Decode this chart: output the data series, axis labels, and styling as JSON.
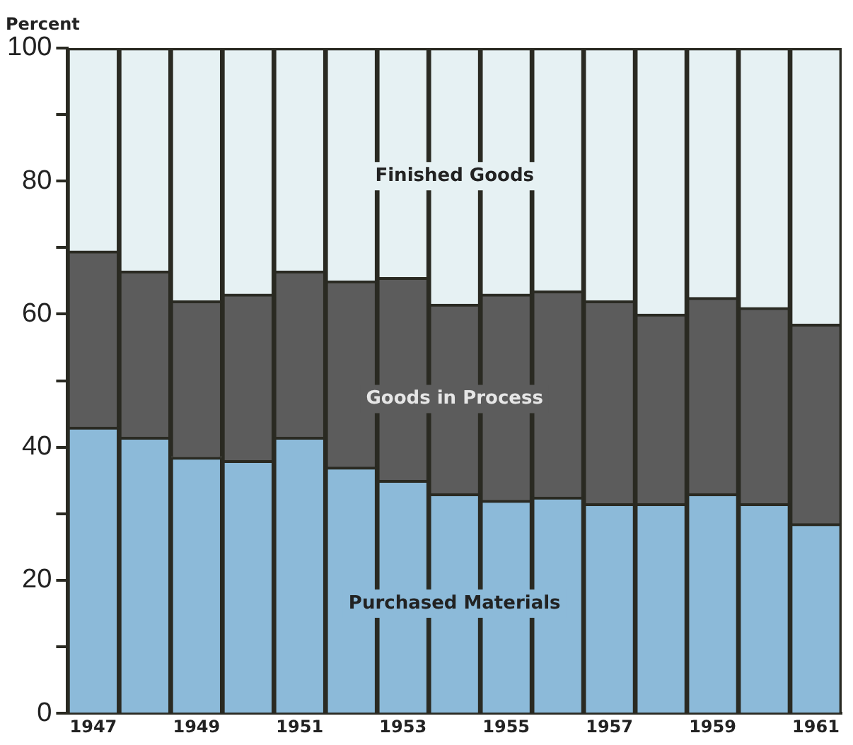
{
  "chart_data": {
    "type": "bar",
    "stacked": true,
    "ylabel": "Percent",
    "grid": false,
    "legend": false,
    "categories": [
      "1947",
      null,
      "1949",
      null,
      "1951",
      null,
      "1953",
      null,
      "1955",
      null,
      "1957",
      null,
      "1959",
      null,
      "1961"
    ],
    "ylim": [
      0,
      100
    ],
    "yticks": [
      0,
      {
        "value": 10,
        "label": null
      },
      20,
      {
        "value": 30,
        "label": null
      },
      40,
      {
        "value": 50,
        "label": null
      },
      60,
      {
        "value": 70,
        "label": null
      },
      80,
      {
        "value": 90,
        "label": null
      },
      100
    ],
    "series": [
      {
        "name": "Purchased Materials",
        "color": "#8cbad9",
        "values": [
          43,
          41.5,
          38.5,
          38,
          41.5,
          37,
          35,
          33,
          32,
          32.5,
          31.5,
          31.5,
          33,
          31.5,
          28.5
        ]
      },
      {
        "name": "Goods in Process",
        "color": "#5c5c5c",
        "values": [
          26.5,
          25,
          23.5,
          25,
          25,
          28,
          30.5,
          28.5,
          31,
          31,
          30.5,
          28.5,
          29.5,
          29.5,
          30
        ]
      },
      {
        "name": "Finished Goods",
        "color": "#e6f1f3",
        "values": [
          30.5,
          33.5,
          38,
          37,
          33.5,
          35,
          34.5,
          38.5,
          37,
          36.5,
          38,
          40,
          37.5,
          39,
          41.5
        ]
      }
    ]
  }
}
